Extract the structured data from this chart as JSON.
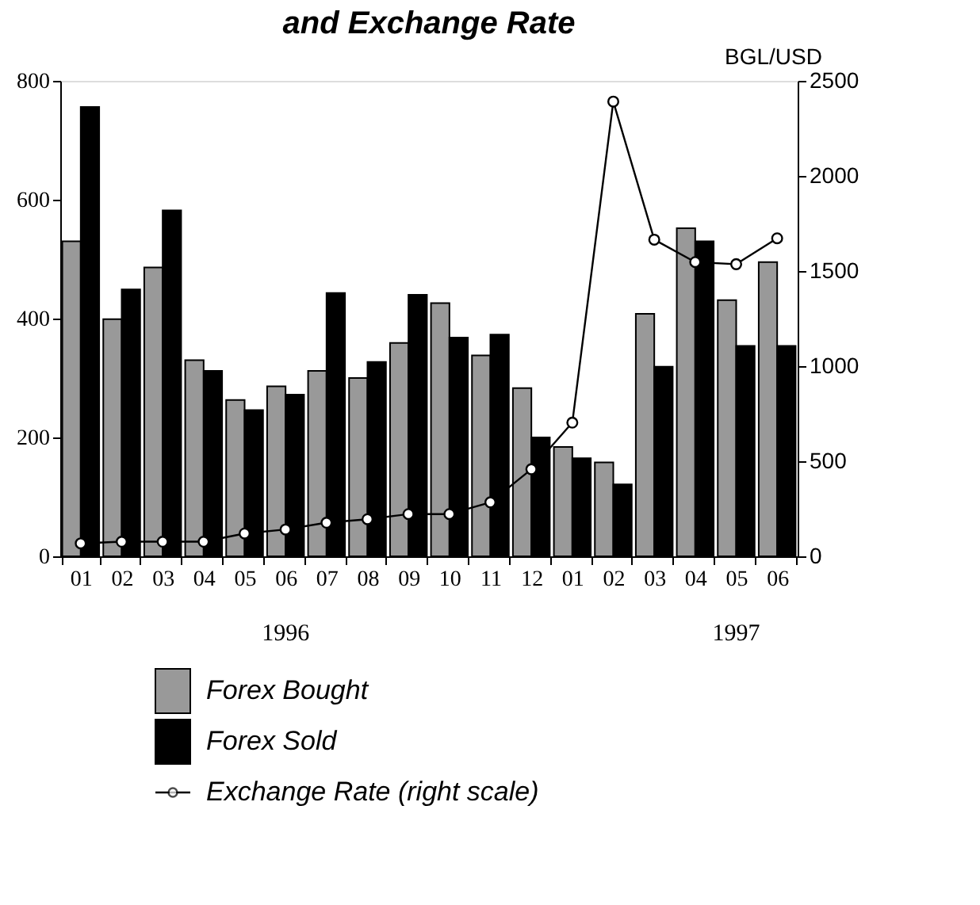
{
  "chart_data": {
    "type": "bar",
    "title": "and Exchange Rate",
    "categories": [
      "01",
      "02",
      "03",
      "04",
      "05",
      "06",
      "07",
      "08",
      "09",
      "10",
      "11",
      "12",
      "01",
      "02",
      "03",
      "04",
      "05",
      "06"
    ],
    "series": [
      {
        "name": "Forex Bought",
        "color": "#999999",
        "values": [
          530,
          399,
          486,
          330,
          263,
          286,
          312,
          300,
          359,
          426,
          338,
          283,
          184,
          158,
          408,
          552,
          431,
          495
        ]
      },
      {
        "name": "Forex Sold",
        "color": "#000000",
        "values": [
          756,
          449,
          582,
          312,
          246,
          272,
          443,
          327,
          440,
          368,
          373,
          200,
          165,
          121,
          319,
          530,
          354,
          354
        ]
      },
      {
        "name": "Exchange Rate (right scale)",
        "type": "line",
        "axis": "y2",
        "color": "#000000",
        "marker": "circle",
        "values": [
          68,
          77,
          77,
          77,
          120,
          141,
          177,
          195,
          222,
          222,
          284,
          458,
          703,
          2391,
          1665,
          1547,
          1536,
          1672
        ]
      }
    ],
    "ylim": [
      0,
      800
    ],
    "yticks": [
      0,
      200,
      400,
      600,
      800
    ],
    "y2lim": [
      0,
      2500
    ],
    "y2ticks": [
      0,
      500,
      1000,
      1500,
      2000,
      2500
    ],
    "y2label": "BGL/USD",
    "annotations": [
      "1996",
      "1997"
    ],
    "grid": false,
    "legend": "bottom left"
  }
}
